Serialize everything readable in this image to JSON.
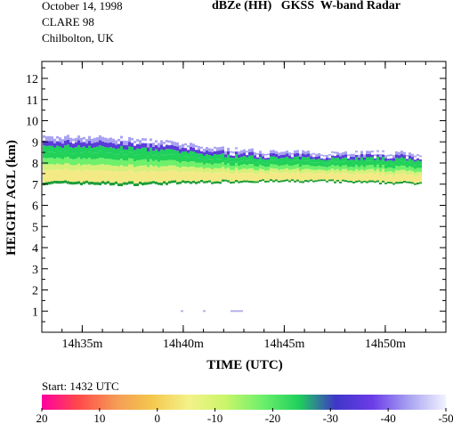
{
  "header": {
    "date": "October 14, 1998",
    "campaign": "CLARE 98",
    "location": "Chilbolton, UK",
    "title": "dBZe (HH)   GKSS  W-band Radar"
  },
  "footer": {
    "start_label": "Start: 1432 UTC"
  },
  "colors": {
    "colorbar_stops": [
      "#ff00a0",
      "#ff4a4a",
      "#f59a55",
      "#f4c84e",
      "#f3f28a",
      "#caf569",
      "#6ef06b",
      "#1fd05c",
      "#3f36c8",
      "#6b3ce8",
      "#a9a3f1",
      "#f2f2ff"
    ]
  },
  "chart_data": {
    "type": "heatmap",
    "title": "dBZe (HH)   GKSS  W-band Radar",
    "xlabel": "TIME (UTC)",
    "ylabel": "HEIGHT AGL (km)",
    "xlim": [
      "14h33m",
      "14h53m"
    ],
    "ylim": [
      0,
      12.8
    ],
    "x_ticks": [
      "14h35m",
      "14h40m",
      "14h45m",
      "14h50m"
    ],
    "y_ticks": [
      "1",
      "2",
      "3",
      "4",
      "5",
      "6",
      "7",
      "8",
      "9",
      "10",
      "11",
      "12"
    ],
    "colorbar": {
      "unit": "dBZe",
      "range": [
        20,
        -50
      ],
      "tick_labels": [
        "20",
        "10",
        "0",
        "-10",
        "-20",
        "-30",
        "-40",
        "-50"
      ]
    },
    "cloud_layer": {
      "base_km": [
        7.0,
        7.0,
        6.95,
        7.0,
        7.05,
        7.1,
        7.1,
        7.1,
        7.05,
        7.0
      ],
      "top_km": [
        9.2,
        9.25,
        9.15,
        9.0,
        8.75,
        8.6,
        8.5,
        8.5,
        8.5,
        8.45
      ],
      "times_min": [
        0,
        2,
        4,
        6,
        8,
        10,
        12,
        14,
        16,
        18.8
      ],
      "core_dbz_range": [
        -10,
        -5
      ],
      "edge_dbz_range": [
        -45,
        -30
      ]
    },
    "low_echo": {
      "height_km": 1.0,
      "dbz": -45
    }
  }
}
